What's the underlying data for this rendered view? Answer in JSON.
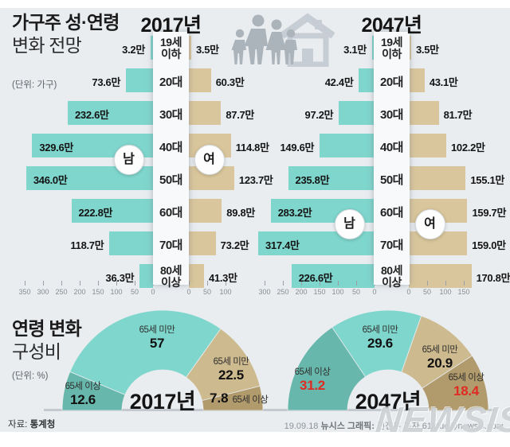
{
  "header": {
    "title_line1": "가구주 성·연령",
    "title_line2": "변화 전망",
    "unit": "(단위: 가구)"
  },
  "age_section": {
    "title_line1": "연령 변화",
    "title_line2": "구성비",
    "unit": "(단위: %)"
  },
  "footer": {
    "source_label": "자료:",
    "source": "통계청",
    "credit_date": "19.09.18",
    "credit_bold": "뉴시스 그래픽:",
    "credit_rest": "전진우 기자 618tue@newsis.com",
    "watermark": "NEWSIS"
  },
  "colors": {
    "male_bar": "#7fd6cd",
    "female_bar": "#d9c69c",
    "teal": "#7fd6cd",
    "teal_dark": "#68b7ac",
    "tan": "#cdba8f",
    "tan_dark": "#b19b6d",
    "value_red": "#e02b22",
    "panel_bg": "#e9edf0"
  },
  "chart_data": [
    {
      "type": "bar",
      "subtype": "population-pyramid",
      "title": "2017년",
      "categories": [
        "19세 이하",
        "20대",
        "30대",
        "40대",
        "50대",
        "60대",
        "70대",
        "80세 이상"
      ],
      "series": [
        {
          "name": "남",
          "values": [
            3.2,
            73.6,
            232.6,
            329.6,
            346.0,
            222.8,
            118.7,
            36.3
          ],
          "labels": [
            "3.2만",
            "73.6만",
            "232.6만",
            "329.6만",
            "346.0만",
            "222.8만",
            "118.7만",
            "36.3만"
          ]
        },
        {
          "name": "여",
          "values": [
            3.5,
            60.3,
            87.7,
            114.8,
            123.7,
            89.8,
            73.2,
            41.3
          ],
          "labels": [
            "3.5만",
            "60.3만",
            "87.7만",
            "114.8만",
            "123.7만",
            "89.8만",
            "73.2만",
            "41.3만"
          ]
        }
      ],
      "axis_left_ticks": [
        350,
        300,
        250,
        200,
        150,
        100,
        50,
        0
      ],
      "axis_right_ticks": [
        0,
        50,
        100
      ],
      "unit": "만"
    },
    {
      "type": "bar",
      "subtype": "population-pyramid",
      "title": "2047년",
      "categories": [
        "19세 이하",
        "20대",
        "30대",
        "40대",
        "50대",
        "60대",
        "70대",
        "80세 이상"
      ],
      "series": [
        {
          "name": "남",
          "values": [
            3.1,
            42.4,
            97.2,
            149.6,
            235.8,
            283.2,
            317.4,
            226.6
          ],
          "labels": [
            "3.1만",
            "42.4만",
            "97.2만",
            "149.6만",
            "235.8만",
            "283.2만",
            "317.4만",
            "226.6만"
          ]
        },
        {
          "name": "여",
          "values": [
            3.5,
            43.1,
            81.7,
            102.2,
            155.1,
            159.7,
            159.0,
            170.8
          ],
          "labels": [
            "3.5만",
            "43.1만",
            "81.7만",
            "102.2만",
            "155.1만",
            "159.7만",
            "159.0만",
            "170.8만"
          ]
        }
      ],
      "axis_left_ticks": [
        300,
        250,
        200,
        150,
        100,
        50,
        0
      ],
      "axis_right_ticks": [
        0,
        50,
        100,
        150
      ],
      "unit": "만"
    },
    {
      "type": "pie",
      "subtype": "semicircle-donut",
      "title": "2017년",
      "labels": [
        "65세 이상",
        "65세 미만",
        "65세 미만",
        "65세 이상"
      ],
      "values": [
        12.6,
        57,
        22.5,
        7.8
      ],
      "display": [
        "12.6",
        "57",
        "22.5",
        "7.8"
      ],
      "color_keys": [
        "teal_dark",
        "teal",
        "tan",
        "tan_dark"
      ],
      "red_flags": [
        false,
        false,
        false,
        false
      ]
    },
    {
      "type": "pie",
      "subtype": "semicircle-donut",
      "title": "2047년",
      "labels": [
        "65세 이상",
        "65세 미만",
        "65세 미만",
        "65세 이상"
      ],
      "values": [
        31.2,
        29.6,
        20.9,
        18.4
      ],
      "display": [
        "31.2",
        "29.6",
        "20.9",
        "18.4"
      ],
      "color_keys": [
        "teal_dark",
        "teal",
        "tan",
        "tan_dark"
      ],
      "red_flags": [
        true,
        false,
        false,
        true
      ]
    }
  ]
}
